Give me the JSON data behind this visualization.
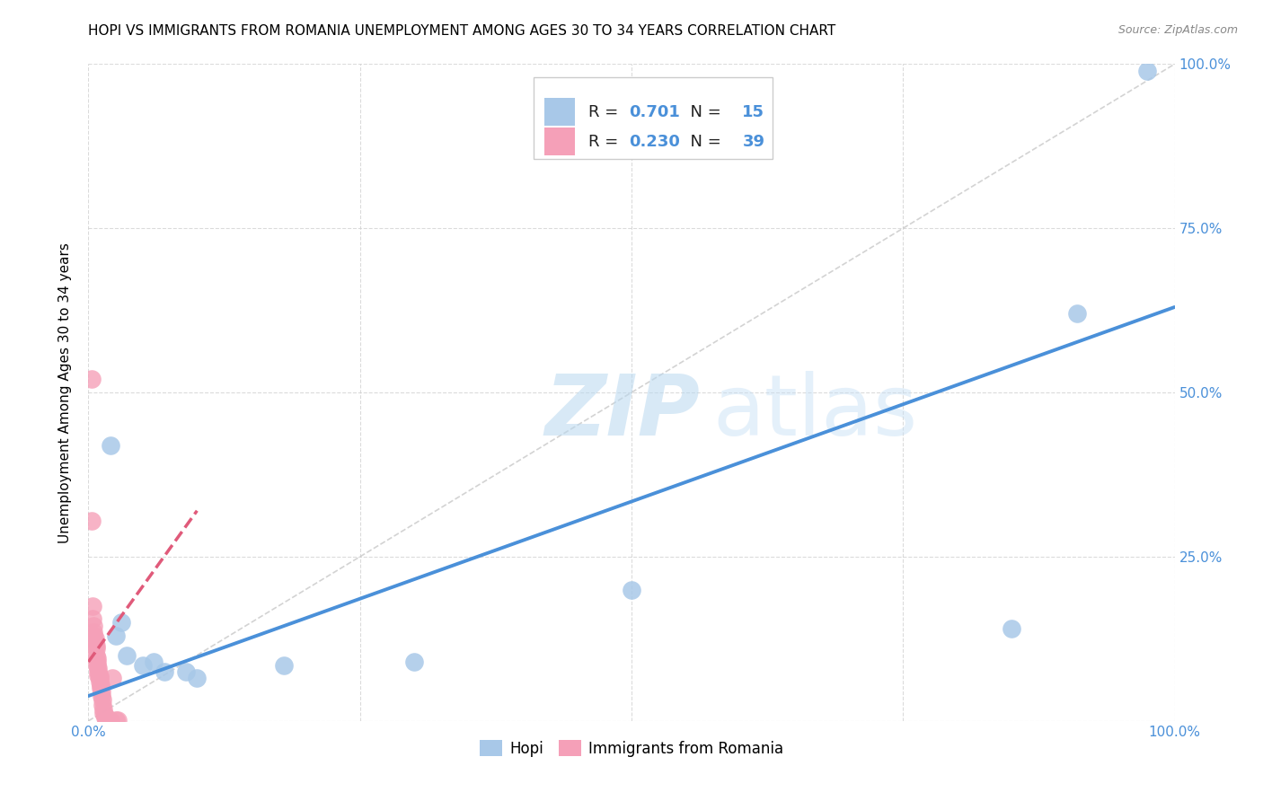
{
  "title": "HOPI VS IMMIGRANTS FROM ROMANIA UNEMPLOYMENT AMONG AGES 30 TO 34 YEARS CORRELATION CHART",
  "source": "Source: ZipAtlas.com",
  "ylabel_label": "Unemployment Among Ages 30 to 34 years",
  "legend_label1": "Hopi",
  "legend_label2": "Immigrants from Romania",
  "R1": 0.701,
  "N1": 15,
  "R2": 0.23,
  "N2": 39,
  "color_hopi": "#a8c8e8",
  "color_romania": "#f5a0b8",
  "trendline_hopi": "#4a90d9",
  "trendline_romania": "#e05a7a",
  "diagonal_color": "#c8c8c8",
  "xmin": 0.0,
  "xmax": 1.0,
  "ymin": 0.0,
  "ymax": 1.0,
  "xticks": [
    0.0,
    0.25,
    0.5,
    0.75,
    1.0
  ],
  "yticks": [
    0.0,
    0.25,
    0.5,
    0.75,
    1.0
  ],
  "xtick_labels": [
    "0.0%",
    "",
    "",
    "",
    "100.0%"
  ],
  "ytick_labels_right": [
    "",
    "25.0%",
    "50.0%",
    "75.0%",
    "100.0%"
  ],
  "hopi_points": [
    [
      0.02,
      0.42
    ],
    [
      0.025,
      0.13
    ],
    [
      0.03,
      0.15
    ],
    [
      0.035,
      0.1
    ],
    [
      0.05,
      0.085
    ],
    [
      0.06,
      0.09
    ],
    [
      0.07,
      0.075
    ],
    [
      0.09,
      0.075
    ],
    [
      0.1,
      0.065
    ],
    [
      0.18,
      0.085
    ],
    [
      0.3,
      0.09
    ],
    [
      0.5,
      0.2
    ],
    [
      0.85,
      0.14
    ],
    [
      0.91,
      0.62
    ],
    [
      0.975,
      0.99
    ]
  ],
  "romania_points": [
    [
      0.003,
      0.52
    ],
    [
      0.003,
      0.305
    ],
    [
      0.004,
      0.175
    ],
    [
      0.004,
      0.155
    ],
    [
      0.005,
      0.145
    ],
    [
      0.005,
      0.135
    ],
    [
      0.005,
      0.13
    ],
    [
      0.006,
      0.125
    ],
    [
      0.006,
      0.12
    ],
    [
      0.007,
      0.115
    ],
    [
      0.007,
      0.11
    ],
    [
      0.007,
      0.1
    ],
    [
      0.008,
      0.095
    ],
    [
      0.008,
      0.09
    ],
    [
      0.008,
      0.085
    ],
    [
      0.009,
      0.08
    ],
    [
      0.009,
      0.075
    ],
    [
      0.009,
      0.07
    ],
    [
      0.01,
      0.068
    ],
    [
      0.01,
      0.065
    ],
    [
      0.01,
      0.06
    ],
    [
      0.011,
      0.055
    ],
    [
      0.011,
      0.05
    ],
    [
      0.012,
      0.045
    ],
    [
      0.012,
      0.038
    ],
    [
      0.013,
      0.032
    ],
    [
      0.013,
      0.025
    ],
    [
      0.014,
      0.018
    ],
    [
      0.014,
      0.012
    ],
    [
      0.015,
      0.008
    ],
    [
      0.015,
      0.005
    ],
    [
      0.016,
      0.003
    ],
    [
      0.017,
      0.002
    ],
    [
      0.018,
      0.001
    ],
    [
      0.019,
      0.001
    ],
    [
      0.02,
      0.001
    ],
    [
      0.022,
      0.065
    ],
    [
      0.025,
      0.001
    ],
    [
      0.027,
      0.001
    ]
  ],
  "hopi_trend_x": [
    0.0,
    1.0
  ],
  "hopi_trend_y": [
    0.038,
    0.63
  ],
  "romania_trend_x": [
    0.0,
    0.1
  ],
  "romania_trend_y": [
    0.09,
    0.32
  ],
  "watermark_zip": "ZIP",
  "watermark_atlas": "atlas",
  "background_color": "#ffffff",
  "title_fontsize": 11,
  "axis_label_fontsize": 11,
  "tick_fontsize": 11,
  "legend_fontsize": 13,
  "tick_color": "#4a90d9"
}
